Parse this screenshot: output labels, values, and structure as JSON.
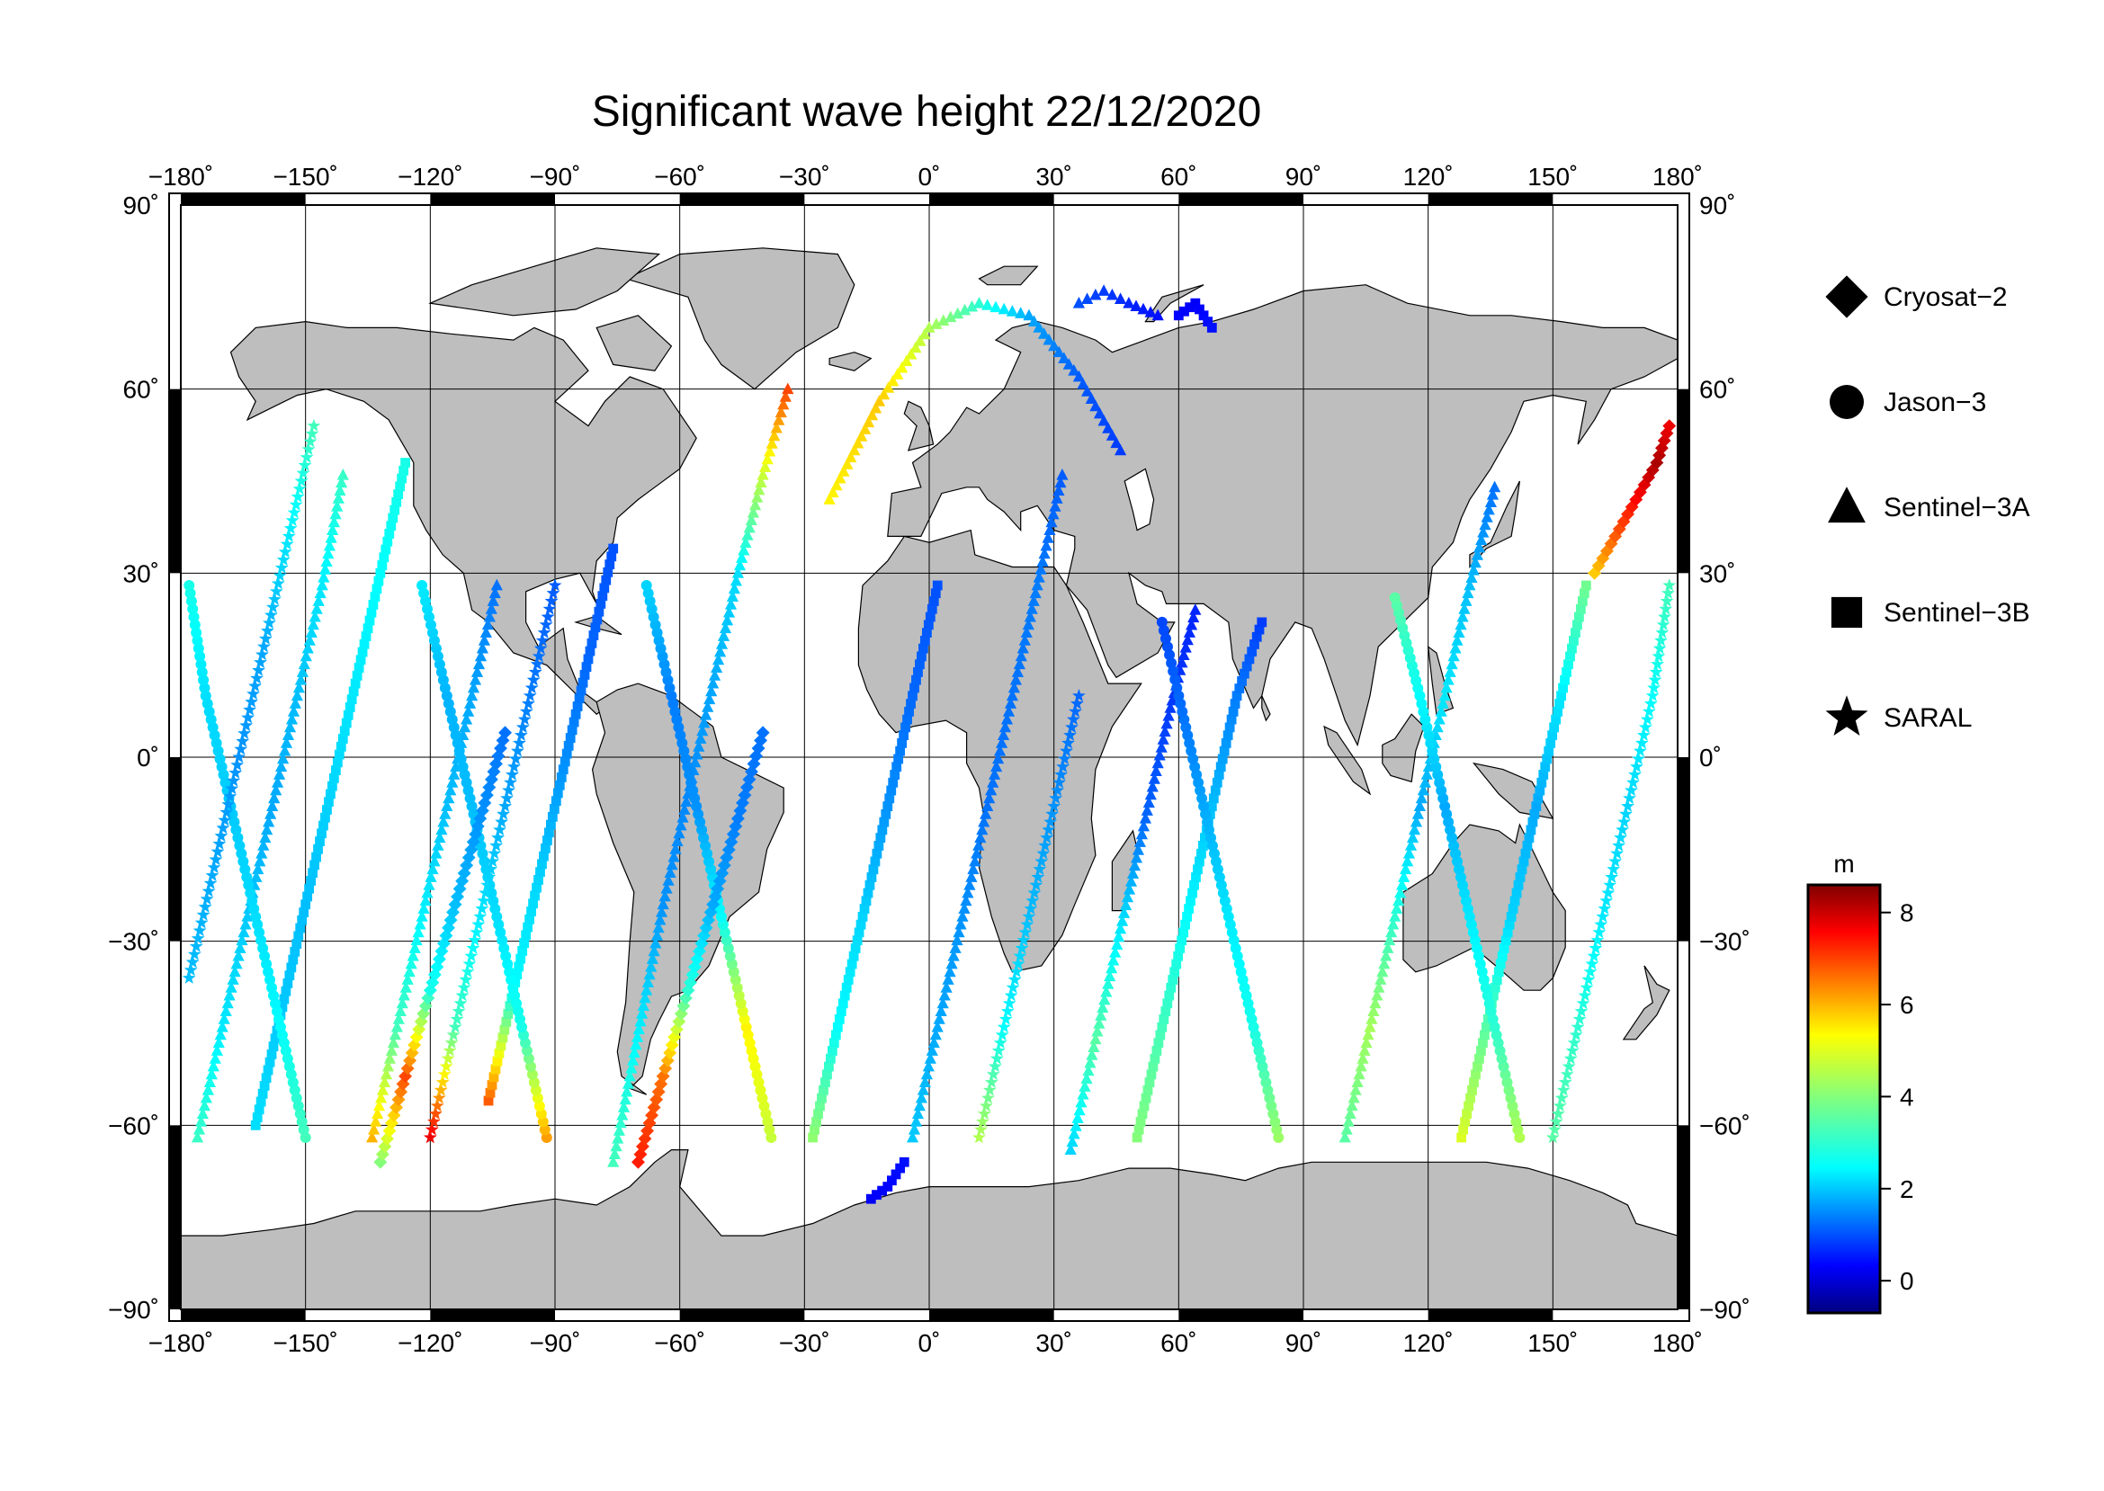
{
  "title": "Significant wave height 22/12/2020",
  "map": {
    "projection": "equirectangular",
    "lon_range": [
      -180,
      180
    ],
    "lat_range": [
      -90,
      90
    ],
    "lon_ticks": [
      -180,
      -150,
      -120,
      -90,
      -60,
      -30,
      0,
      30,
      60,
      90,
      120,
      150,
      180
    ],
    "lat_ticks": [
      -90,
      -60,
      -30,
      0,
      30,
      60,
      90
    ],
    "lon_tick_labels": [
      "−180˚",
      "−150˚",
      "−120˚",
      "−90˚",
      "−60˚",
      "−30˚",
      "0˚",
      "30˚",
      "60˚",
      "90˚",
      "120˚",
      "150˚",
      "180˚"
    ],
    "lat_tick_labels": [
      "−90˚",
      "−60˚",
      "−30˚",
      "0˚",
      "30˚",
      "60˚",
      "90˚"
    ],
    "grid": true,
    "land_color": "#bebebe",
    "ocean_color": "#ffffff"
  },
  "legend": {
    "placement": "right",
    "items": [
      {
        "label": "Cryosat−2",
        "symbol": "diamond"
      },
      {
        "label": "Jason−3",
        "symbol": "circle"
      },
      {
        "label": "Sentinel−3A",
        "symbol": "triangle"
      },
      {
        "label": "Sentinel−3B",
        "symbol": "square"
      },
      {
        "label": "SARAL",
        "symbol": "star"
      }
    ]
  },
  "colorbar": {
    "unit": "m",
    "min": -0.7,
    "max": 8.6,
    "ticks": [
      0,
      2,
      4,
      6,
      8
    ],
    "tick_labels": [
      "0",
      "2",
      "4",
      "6",
      "8"
    ],
    "colormap": "jet"
  },
  "chart_data": {
    "type": "scatter",
    "title": "Significant wave height 22/12/2020",
    "xlabel": "",
    "ylabel": "",
    "xlim": [
      -180,
      180
    ],
    "ylim": [
      -90,
      90
    ],
    "value_unit": "m",
    "value_range": [
      -0.7,
      8.6
    ],
    "series": [
      {
        "name": "Sentinel−3A",
        "symbol": "triangle",
        "tracks": [
          {
            "lon": [
              -176,
              -170,
              -164,
              -158,
              -152,
              -146,
              -141
            ],
            "lat": [
              -62,
              -44,
              -26,
              -8,
              10,
              28,
              46
            ],
            "swh": [
              3.3,
              2.6,
              2.3,
              2.0,
              2.2,
              2.6,
              3.3
            ]
          },
          {
            "lon": [
              -134,
              -128,
              -122,
              -116,
              -110,
              -104
            ],
            "lat": [
              -62,
              -44,
              -26,
              -8,
              10,
              28
            ],
            "swh": [
              5.8,
              3.4,
              2.7,
              2.2,
              2.0,
              1.5
            ]
          },
          {
            "lon": [
              -76,
              -72,
              -68,
              -64,
              -58,
              -52,
              -46,
              -40,
              -34
            ],
            "lat": [
              -66,
              -52,
              -38,
              -24,
              -6,
              12,
              30,
              46,
              60
            ],
            "swh": [
              3.4,
              3.0,
              2.4,
              1.8,
              1.7,
              2.0,
              2.5,
              4.6,
              6.8
            ]
          },
          {
            "lon": [
              -4,
              2,
              8,
              14,
              20,
              26,
              32
            ],
            "lat": [
              -62,
              -44,
              -26,
              -8,
              10,
              28,
              46
            ],
            "swh": [
              2.3,
              2.0,
              1.8,
              1.5,
              1.5,
              1.6,
              1.3
            ]
          },
          {
            "lon": [
              34,
              40,
              46,
              52,
              58,
              64
            ],
            "lat": [
              -64,
              -46,
              -28,
              -10,
              8,
              24
            ],
            "swh": [
              2.4,
              3.6,
              2.6,
              1.4,
              1.0,
              0.8
            ]
          },
          {
            "lon": [
              100,
              106,
              112,
              118,
              124,
              130,
              136
            ],
            "lat": [
              -62,
              -44,
              -26,
              -8,
              10,
              28,
              44
            ],
            "swh": [
              3.6,
              4.3,
              3.2,
              2.0,
              2.6,
              2.2,
              1.5
            ]
          },
          {
            "lon": [
              -24,
              -12,
              0,
              12,
              24,
              36,
              46
            ],
            "lat": [
              42,
              58,
              70,
              74,
              72,
              62,
              50
            ],
            "swh": [
              5.2,
              5.6,
              4.4,
              3.2,
              2.0,
              1.3,
              1.0
            ]
          },
          {
            "lon": [
              36,
              42,
              48,
              55
            ],
            "lat": [
              74,
              76,
              74,
              72
            ],
            "swh": [
              1.2,
              1.0,
              0.8,
              0.6
            ]
          }
        ]
      },
      {
        "name": "Sentinel−3B",
        "symbol": "square",
        "tracks": [
          {
            "lon": [
              -162,
              -156,
              -150,
              -144,
              -138,
              -132,
              -126
            ],
            "lat": [
              -60,
              -42,
              -24,
              -6,
              12,
              30,
              48
            ],
            "swh": [
              2.5,
              2.3,
              2.2,
              2.4,
              2.6,
              2.8,
              3.0
            ]
          },
          {
            "lon": [
              -106,
              -100,
              -94,
              -88,
              -82,
              -76
            ],
            "lat": [
              -56,
              -38,
              -20,
              -2,
              16,
              34
            ],
            "swh": [
              6.6,
              2.8,
              2.4,
              1.8,
              1.4,
              1.2
            ]
          },
          {
            "lon": [
              -28,
              -22,
              -16,
              -10,
              -4,
              2
            ],
            "lat": [
              -62,
              -44,
              -26,
              -8,
              10,
              28
            ],
            "swh": [
              4.1,
              2.8,
              2.4,
              1.8,
              1.4,
              1.2
            ]
          },
          {
            "lon": [
              50,
              56,
              62,
              68,
              74,
              80
            ],
            "lat": [
              -62,
              -44,
              -26,
              -8,
              10,
              22
            ],
            "swh": [
              4.0,
              3.4,
              2.8,
              2.2,
              1.6,
              1.0
            ]
          },
          {
            "lon": [
              128,
              134,
              140,
              146,
              152,
              158
            ],
            "lat": [
              -62,
              -44,
              -26,
              -8,
              10,
              28
            ],
            "swh": [
              4.8,
              3.6,
              2.4,
              2.0,
              2.6,
              3.8
            ]
          },
          {
            "lon": [
              -6,
              -10,
              -14
            ],
            "lat": [
              -66,
              -70,
              -72
            ],
            "swh": [
              0.6,
              0.5,
              0.4
            ]
          },
          {
            "lon": [
              60,
              64,
              68
            ],
            "lat": [
              72,
              74,
              70
            ],
            "swh": [
              0.5,
              0.4,
              0.6
            ]
          }
        ]
      },
      {
        "name": "Jason−3",
        "symbol": "circle",
        "tracks": [
          {
            "lon": [
              -150,
              -156,
              -162,
              -168,
              -174,
              -178
            ],
            "lat": [
              -62,
              -44,
              -26,
              -8,
              10,
              28
            ],
            "swh": [
              3.4,
              2.8,
              2.5,
              2.3,
              2.5,
              3.0
            ]
          },
          {
            "lon": [
              -92,
              -98,
              -104,
              -110,
              -116,
              -122
            ],
            "lat": [
              -62,
              -44,
              -26,
              -8,
              10,
              28
            ],
            "swh": [
              6.0,
              3.0,
              2.5,
              2.2,
              2.1,
              2.6
            ]
          },
          {
            "lon": [
              -38,
              -44,
              -50,
              -56,
              -62,
              -68
            ],
            "lat": [
              -62,
              -44,
              -26,
              -8,
              10,
              28
            ],
            "swh": [
              4.6,
              5.2,
              2.8,
              1.8,
              1.6,
              2.4
            ]
          },
          {
            "lon": [
              84,
              78,
              72,
              66,
              60,
              56
            ],
            "lat": [
              -62,
              -44,
              -26,
              -8,
              10,
              22
            ],
            "swh": [
              4.2,
              3.0,
              2.6,
              2.0,
              1.4,
              1.1
            ]
          },
          {
            "lon": [
              142,
              136,
              130,
              124,
              118,
              112
            ],
            "lat": [
              -62,
              -44,
              -26,
              -8,
              10,
              26
            ],
            "swh": [
              4.4,
              3.2,
              2.6,
              2.0,
              2.8,
              3.6
            ]
          }
        ]
      },
      {
        "name": "Cryosat−2",
        "symbol": "diamond",
        "tracks": [
          {
            "lon": [
              -132,
              -126,
              -120,
              -114,
              -108,
              -102
            ],
            "lat": [
              -66,
              -52,
              -38,
              -24,
              -10,
              4
            ],
            "swh": [
              4.0,
              6.8,
              3.0,
              2.2,
              1.8,
              1.5
            ]
          },
          {
            "lon": [
              -70,
              -64,
              -58,
              -52,
              -46,
              -40
            ],
            "lat": [
              -66,
              -52,
              -38,
              -24,
              -10,
              4
            ],
            "swh": [
              7.2,
              6.4,
              3.2,
              2.0,
              1.6,
              1.5
            ]
          },
          {
            "lon": [
              160,
              165,
              170,
              175,
              178
            ],
            "lat": [
              30,
              36,
              42,
              48,
              54
            ],
            "swh": [
              5.6,
              6.6,
              7.4,
              8.2,
              7.6
            ]
          }
        ]
      },
      {
        "name": "SARAL",
        "symbol": "star",
        "tracks": [
          {
            "lon": [
              -178,
              -172,
              -166,
              -160,
              -154,
              -148
            ],
            "lat": [
              -36,
              -18,
              0,
              18,
              36,
              54
            ],
            "swh": [
              2.2,
              2.0,
              1.8,
              2.0,
              2.6,
              3.4
            ]
          },
          {
            "lon": [
              -120,
              -114,
              -108,
              -102,
              -96,
              -90
            ],
            "lat": [
              -62,
              -44,
              -26,
              -8,
              10,
              28
            ],
            "swh": [
              7.6,
              3.4,
              2.6,
              2.0,
              1.6,
              1.3
            ]
          },
          {
            "lon": [
              12,
              18,
              24,
              30,
              36
            ],
            "lat": [
              -62,
              -44,
              -26,
              -8,
              10
            ],
            "swh": [
              4.4,
              2.8,
              2.2,
              1.8,
              1.4
            ]
          },
          {
            "lon": [
              150,
              156,
              162,
              168,
              174,
              178
            ],
            "lat": [
              -62,
              -44,
              -26,
              -8,
              10,
              28
            ],
            "swh": [
              3.6,
              3.2,
              2.6,
              2.4,
              2.8,
              3.4
            ]
          }
        ]
      }
    ]
  }
}
